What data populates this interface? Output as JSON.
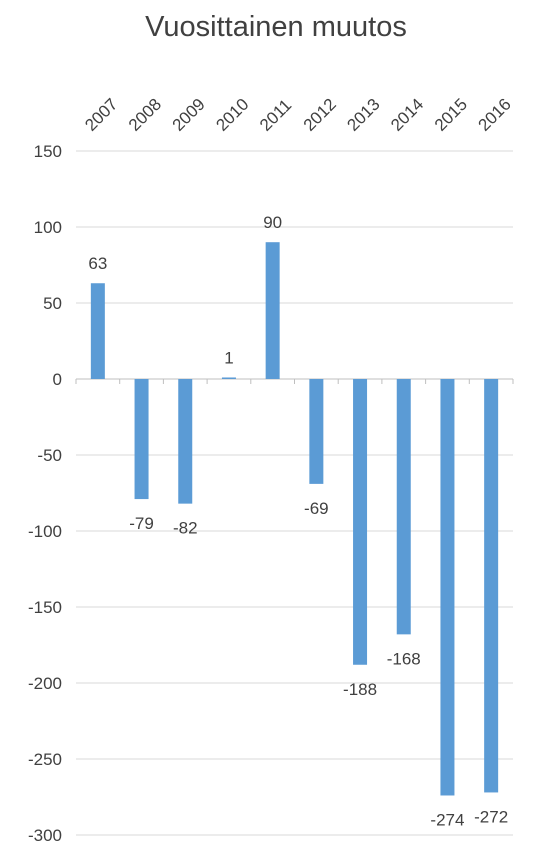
{
  "chart_data": {
    "type": "bar",
    "title": "Vuosittainen muutos",
    "xlabel": "",
    "ylabel": "",
    "categories": [
      "2007",
      "2008",
      "2009",
      "2010",
      "2011",
      "2012",
      "2013",
      "2014",
      "2015",
      "2016"
    ],
    "values": [
      63,
      -79,
      -82,
      1,
      90,
      -69,
      -188,
      -168,
      -274,
      -272
    ],
    "data_labels": [
      "63",
      "-79",
      "-82",
      "1",
      "90",
      "-69",
      "-188",
      "-168",
      "-274",
      "-272"
    ],
    "ylim": [
      -300,
      150
    ],
    "yticks": [
      150,
      100,
      50,
      0,
      -50,
      -100,
      -150,
      -200,
      -250,
      -300
    ],
    "ytick_labels": [
      "150",
      "100",
      "50",
      "0",
      "-50",
      "-100",
      "-150",
      "-200",
      "-250",
      "-300"
    ],
    "category_axis_position": "top",
    "category_label_rotation": "diagonal",
    "grid": true,
    "legend": "none",
    "colors": {
      "bar": "#5b9bd5",
      "grid": "#d9d9d9",
      "axis": "#bfbfbf",
      "text": "#404040"
    }
  }
}
